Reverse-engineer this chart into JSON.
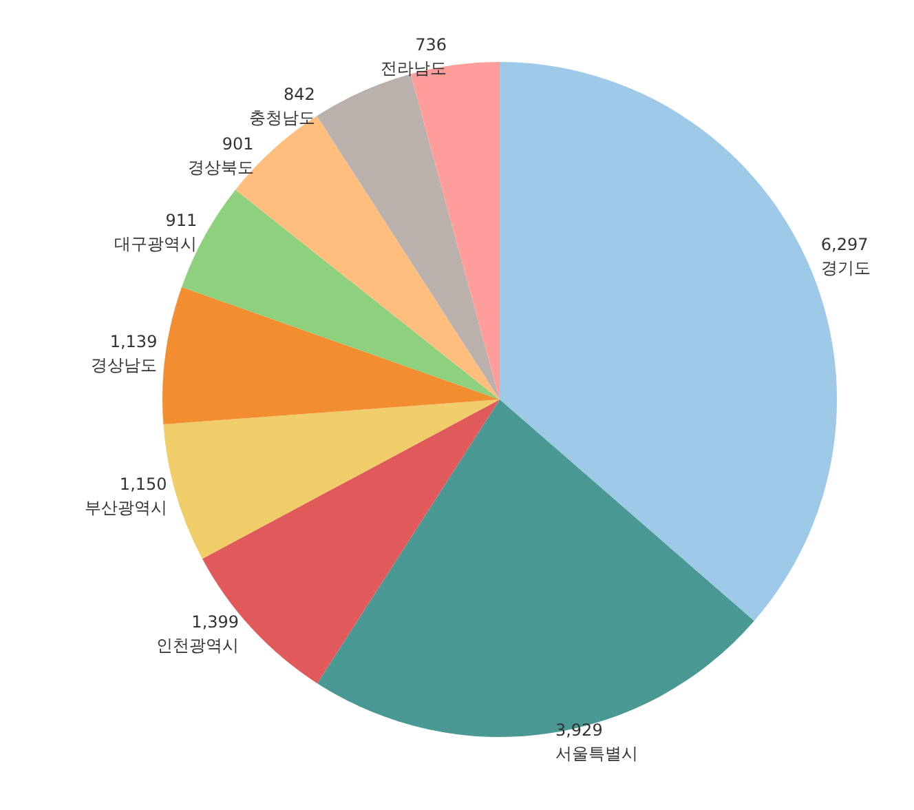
{
  "chart_data": {
    "type": "pie",
    "categories": [
      "경기도",
      "서울특별시",
      "인천광역시",
      "부산광역시",
      "경상남도",
      "대구광역시",
      "경상북도",
      "충청남도",
      "전라남도"
    ],
    "values": [
      6297,
      3929,
      1399,
      1150,
      1139,
      911,
      901,
      842,
      736
    ],
    "colors": [
      "#9ecae8",
      "#4a9893",
      "#e05a5b",
      "#f0cd68",
      "#f28e30",
      "#8dd17e",
      "#ffbe7d",
      "#bab0ac",
      "#ff9d9a"
    ],
    "value_labels": [
      "6,297",
      "3,929",
      "1,399",
      "1,150",
      "1,139",
      "911",
      "901",
      "842",
      "736"
    ],
    "legend": false
  }
}
